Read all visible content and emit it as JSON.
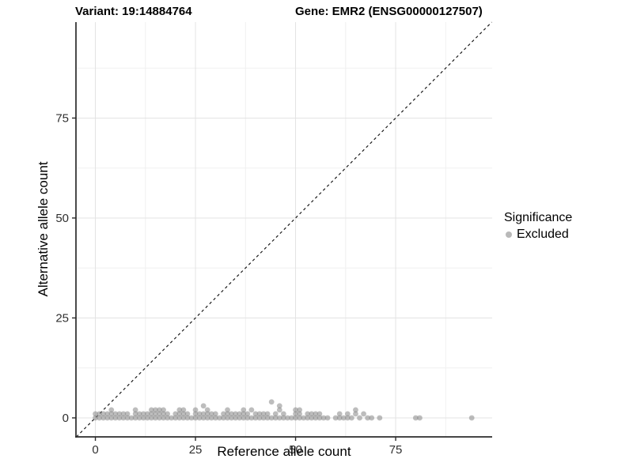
{
  "titles": {
    "variant": "Variant: 19:14884764",
    "gene": "Gene: EMR2 (ENSG00000127507)"
  },
  "legend": {
    "title": "Significance",
    "items": [
      {
        "label": "Excluded",
        "color": "#b9b9b9"
      }
    ]
  },
  "colors": {
    "point": "#878787",
    "point_opacity": 0.55,
    "grid_major": "#e3e3e3",
    "grid_minor": "#f0f0f0",
    "axis_line": "#2b2b2b",
    "tick_text": "#303030",
    "identity_line": "#1a1a1a",
    "background": "#ffffff"
  },
  "chart_data": {
    "type": "scatter",
    "title": "Variant: 19:14884764  /  Gene: EMR2 (ENSG00000127507)",
    "xlabel": "Reference allele count",
    "ylabel": "Alternative allele count",
    "xlim": [
      -4.85,
      99.1
    ],
    "ylim": [
      -4.75,
      99.0
    ],
    "x_ticks": [
      0,
      25,
      50,
      75
    ],
    "y_ticks": [
      0,
      25,
      50,
      75
    ],
    "x_minor_ticks": [
      12.5,
      37.5,
      62.5,
      87.5
    ],
    "y_minor_ticks": [
      12.5,
      37.5,
      62.5,
      87.5
    ],
    "grid": true,
    "legend_position": "right",
    "identity_line": {
      "style": "dashed",
      "from": [
        -4.75,
        -4.75
      ],
      "to": [
        99.0,
        99.0
      ]
    },
    "series": [
      {
        "name": "Excluded",
        "points": [
          [
            0,
            0
          ],
          [
            1,
            0
          ],
          [
            2,
            0
          ],
          [
            3,
            0
          ],
          [
            4,
            0
          ],
          [
            5,
            0
          ],
          [
            6,
            0
          ],
          [
            7,
            0
          ],
          [
            8,
            0
          ],
          [
            9,
            0
          ],
          [
            10,
            0
          ],
          [
            11,
            0
          ],
          [
            12,
            0
          ],
          [
            13,
            0
          ],
          [
            14,
            0
          ],
          [
            15,
            0
          ],
          [
            16,
            0
          ],
          [
            17,
            0
          ],
          [
            18,
            0
          ],
          [
            19,
            0
          ],
          [
            20,
            0
          ],
          [
            21,
            0
          ],
          [
            22,
            0
          ],
          [
            23,
            0
          ],
          [
            24,
            0
          ],
          [
            25,
            0
          ],
          [
            26,
            0
          ],
          [
            27,
            0
          ],
          [
            28,
            0
          ],
          [
            29,
            0
          ],
          [
            30,
            0
          ],
          [
            31,
            0
          ],
          [
            32,
            0
          ],
          [
            33,
            0
          ],
          [
            34,
            0
          ],
          [
            35,
            0
          ],
          [
            36,
            0
          ],
          [
            37,
            0
          ],
          [
            38,
            0
          ],
          [
            39,
            0
          ],
          [
            40,
            0
          ],
          [
            41,
            0
          ],
          [
            42,
            0
          ],
          [
            43,
            0
          ],
          [
            44,
            0
          ],
          [
            45,
            0
          ],
          [
            46,
            0
          ],
          [
            47,
            0
          ],
          [
            48,
            0
          ],
          [
            49,
            0
          ],
          [
            50,
            0
          ],
          [
            51,
            0
          ],
          [
            52,
            0
          ],
          [
            53,
            0
          ],
          [
            54,
            0
          ],
          [
            55,
            0
          ],
          [
            56,
            0
          ],
          [
            57,
            0
          ],
          [
            58,
            0
          ],
          [
            60,
            0
          ],
          [
            61,
            0
          ],
          [
            62,
            0
          ],
          [
            63,
            0
          ],
          [
            64,
            0
          ],
          [
            66,
            0
          ],
          [
            68,
            0
          ],
          [
            69,
            0
          ],
          [
            71,
            0
          ],
          [
            80,
            0
          ],
          [
            81,
            0
          ],
          [
            94,
            0
          ],
          [
            0,
            1
          ],
          [
            1,
            1
          ],
          [
            2,
            1
          ],
          [
            3,
            1
          ],
          [
            4,
            1
          ],
          [
            5,
            1
          ],
          [
            6,
            1
          ],
          [
            7,
            1
          ],
          [
            8,
            1
          ],
          [
            10,
            1
          ],
          [
            11,
            1
          ],
          [
            12,
            1
          ],
          [
            13,
            1
          ],
          [
            14,
            1
          ],
          [
            15,
            1
          ],
          [
            16,
            1
          ],
          [
            17,
            1
          ],
          [
            18,
            1
          ],
          [
            20,
            1
          ],
          [
            21,
            1
          ],
          [
            22,
            1
          ],
          [
            23,
            1
          ],
          [
            25,
            1
          ],
          [
            26,
            1
          ],
          [
            27,
            1
          ],
          [
            28,
            1
          ],
          [
            29,
            1
          ],
          [
            30,
            1
          ],
          [
            32,
            1
          ],
          [
            33,
            1
          ],
          [
            34,
            1
          ],
          [
            35,
            1
          ],
          [
            36,
            1
          ],
          [
            37,
            1
          ],
          [
            38,
            1
          ],
          [
            40,
            1
          ],
          [
            41,
            1
          ],
          [
            42,
            1
          ],
          [
            43,
            1
          ],
          [
            45,
            1
          ],
          [
            47,
            1
          ],
          [
            50,
            1
          ],
          [
            51,
            1
          ],
          [
            53,
            1
          ],
          [
            54,
            1
          ],
          [
            55,
            1
          ],
          [
            56,
            1
          ],
          [
            61,
            1
          ],
          [
            63,
            1
          ],
          [
            65,
            1
          ],
          [
            67,
            1
          ],
          [
            4,
            2
          ],
          [
            10,
            2
          ],
          [
            14,
            2
          ],
          [
            15,
            2
          ],
          [
            16,
            2
          ],
          [
            17,
            2
          ],
          [
            21,
            2
          ],
          [
            22,
            2
          ],
          [
            25,
            2
          ],
          [
            28,
            2
          ],
          [
            33,
            2
          ],
          [
            37,
            2
          ],
          [
            39,
            2
          ],
          [
            46,
            2
          ],
          [
            50,
            2
          ],
          [
            51,
            2
          ],
          [
            65,
            2
          ],
          [
            27,
            3
          ],
          [
            46,
            3
          ],
          [
            44,
            4
          ]
        ]
      }
    ]
  }
}
